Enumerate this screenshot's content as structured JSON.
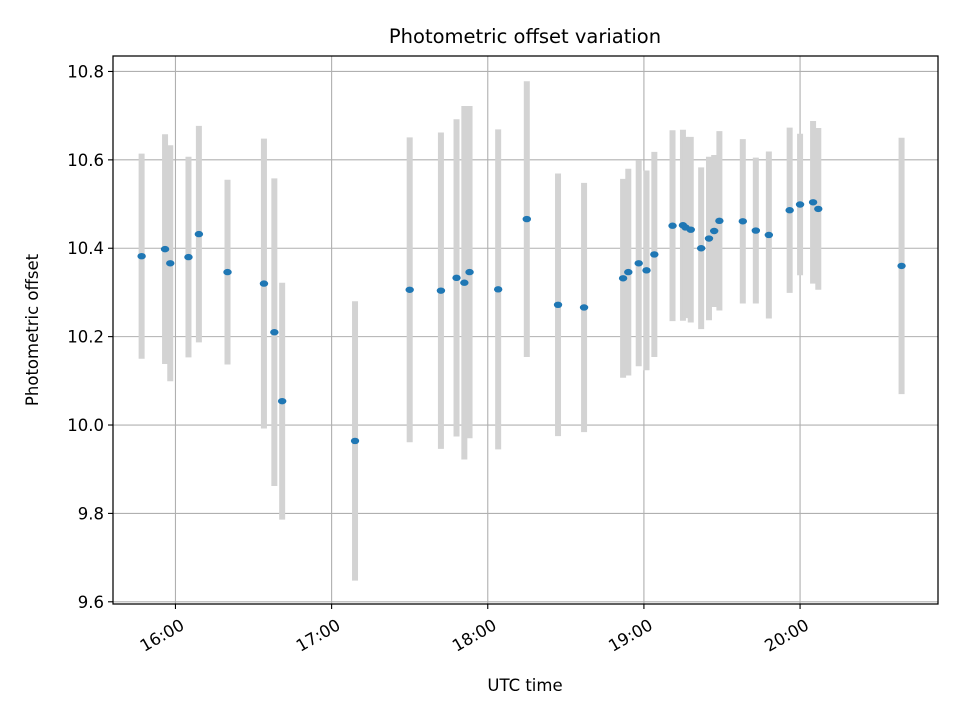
{
  "chart_data": {
    "type": "scatter",
    "title": "Photometric offset variation",
    "xlabel": "UTC time",
    "ylabel": "Photometric offset",
    "xlim": [
      "15:36",
      "20:53"
    ],
    "ylim": [
      9.595,
      10.835
    ],
    "x_ticks": [
      "16:00",
      "17:00",
      "18:00",
      "19:00",
      "20:00"
    ],
    "y_ticks": [
      "9.6",
      "9.8",
      "10.0",
      "10.2",
      "10.4",
      "10.6",
      "10.8"
    ],
    "grid": true,
    "colors": {
      "point": "#1f77b4",
      "errorbar": "#d3d3d3",
      "grid": "#b0b0b0"
    },
    "series": [
      {
        "points": [
          {
            "x": "15:47",
            "y": 10.382,
            "err": 0.232
          },
          {
            "x": "15:56",
            "y": 10.398,
            "err": 0.26
          },
          {
            "x": "15:58",
            "y": 10.366,
            "err": 0.267
          },
          {
            "x": "16:05",
            "y": 10.38,
            "err": 0.227
          },
          {
            "x": "16:09",
            "y": 10.432,
            "err": 0.245
          },
          {
            "x": "16:20",
            "y": 10.346,
            "err": 0.209
          },
          {
            "x": "16:34",
            "y": 10.32,
            "err": 0.328
          },
          {
            "x": "16:38",
            "y": 10.21,
            "err": 0.348
          },
          {
            "x": "16:41",
            "y": 10.054,
            "err": 0.268
          },
          {
            "x": "17:09",
            "y": 9.964,
            "err": 0.316
          },
          {
            "x": "17:30",
            "y": 10.306,
            "err": 0.345
          },
          {
            "x": "17:42",
            "y": 10.304,
            "err": 0.358
          },
          {
            "x": "17:48",
            "y": 10.333,
            "err": 0.359
          },
          {
            "x": "17:51",
            "y": 10.322,
            "err": 0.4
          },
          {
            "x": "17:53",
            "y": 10.346,
            "err": 0.376
          },
          {
            "x": "18:04",
            "y": 10.307,
            "err": 0.362
          },
          {
            "x": "18:15",
            "y": 10.466,
            "err": 0.312
          },
          {
            "x": "18:27",
            "y": 10.272,
            "err": 0.297
          },
          {
            "x": "18:37",
            "y": 10.266,
            "err": 0.282
          },
          {
            "x": "18:52",
            "y": 10.332,
            "err": 0.225
          },
          {
            "x": "18:54",
            "y": 10.346,
            "err": 0.234
          },
          {
            "x": "18:58",
            "y": 10.366,
            "err": 0.233
          },
          {
            "x": "19:01",
            "y": 10.35,
            "err": 0.226
          },
          {
            "x": "19:04",
            "y": 10.386,
            "err": 0.232
          },
          {
            "x": "19:11",
            "y": 10.451,
            "err": 0.216
          },
          {
            "x": "19:15",
            "y": 10.452,
            "err": 0.216
          },
          {
            "x": "19:16",
            "y": 10.447,
            "err": 0.205
          },
          {
            "x": "19:18",
            "y": 10.442,
            "err": 0.21
          },
          {
            "x": "19:22",
            "y": 10.4,
            "err": 0.183
          },
          {
            "x": "19:25",
            "y": 10.422,
            "err": 0.185
          },
          {
            "x": "19:27",
            "y": 10.439,
            "err": 0.172
          },
          {
            "x": "19:29",
            "y": 10.462,
            "err": 0.203
          },
          {
            "x": "19:38",
            "y": 10.461,
            "err": 0.186
          },
          {
            "x": "19:43",
            "y": 10.44,
            "err": 0.165
          },
          {
            "x": "19:48",
            "y": 10.43,
            "err": 0.189
          },
          {
            "x": "19:56",
            "y": 10.486,
            "err": 0.187
          },
          {
            "x": "20:00",
            "y": 10.499,
            "err": 0.16
          },
          {
            "x": "20:05",
            "y": 10.504,
            "err": 0.184
          },
          {
            "x": "20:07",
            "y": 10.489,
            "err": 0.183
          },
          {
            "x": "20:39",
            "y": 10.36,
            "err": 0.29
          }
        ]
      }
    ]
  }
}
